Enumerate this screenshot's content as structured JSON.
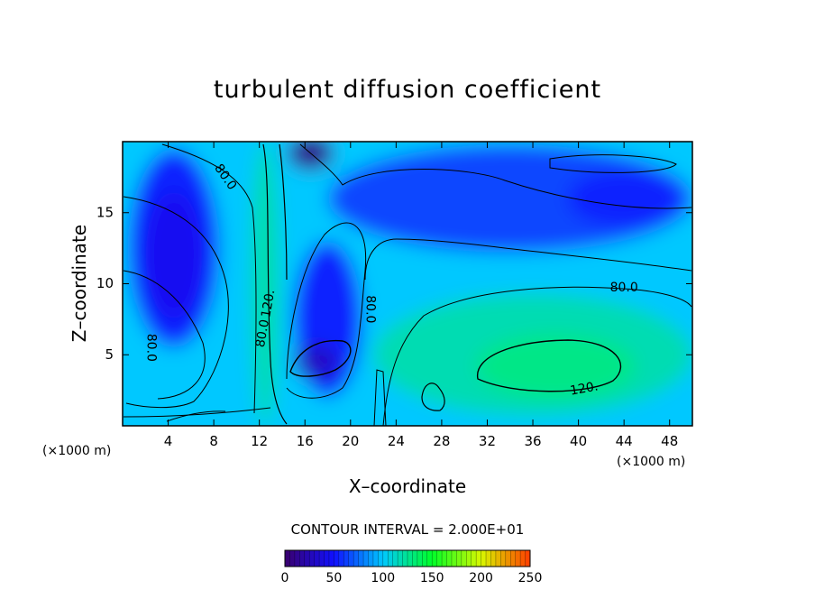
{
  "chart_data": {
    "type": "heatmap",
    "title": "turbulent diffusion coefficient",
    "xlabel": "X–coordinate",
    "ylabel": "Z–coordinate",
    "x_unit_label": "(×1000 m)",
    "x_ticks": [
      4,
      8,
      12,
      16,
      20,
      24,
      28,
      32,
      36,
      40,
      44,
      48
    ],
    "y_ticks": [
      5,
      10,
      15
    ],
    "xlim": [
      0,
      50
    ],
    "ylim": [
      0,
      20
    ],
    "contour_interval_text": "CONTOUR INTERVAL = 2.000E+01",
    "contour_labels": [
      {
        "text": "80.0",
        "x": 9.0,
        "y": 17.5,
        "angle": 55
      },
      {
        "text": "120.",
        "x": 12.8,
        "y": 8.6,
        "angle": -80
      },
      {
        "text": "80.0",
        "x": 12.3,
        "y": 6.5,
        "angle": -80
      },
      {
        "text": "80.0",
        "x": 2.5,
        "y": 5.5,
        "angle": 90
      },
      {
        "text": "80.0",
        "x": 21.7,
        "y": 8.2,
        "angle": 90
      },
      {
        "text": "80.0",
        "x": 44.0,
        "y": 9.7,
        "angle": 0
      },
      {
        "text": "120.",
        "x": 40.5,
        "y": 2.6,
        "angle": -10
      }
    ],
    "colorbar": {
      "min": 0,
      "max": 250,
      "ticks": [
        0,
        50,
        100,
        150,
        200,
        250
      ],
      "colors": [
        "#3a006e",
        "#1010ff",
        "#00c8ff",
        "#00ff28",
        "#d8f800",
        "#ff3c00"
      ]
    },
    "field_regions": [
      {
        "name": "background",
        "value": 100
      },
      {
        "name": "left vortex",
        "x": 4.5,
        "y": 12.5,
        "rx": 4.0,
        "ry": 7.0,
        "value": 55
      },
      {
        "name": "left vortex core",
        "x": 4.5,
        "y": 12.0,
        "rx": 2.5,
        "ry": 4.5,
        "value": 45
      },
      {
        "name": "upper right band",
        "x": 34.0,
        "y": 16.0,
        "rx": 16.0,
        "ry": 3.8,
        "value": 65
      },
      {
        "name": "upper right core",
        "x": 44.0,
        "y": 16.0,
        "rx": 5.0,
        "ry": 2.0,
        "value": 55
      },
      {
        "name": "right eddy",
        "x": 36.0,
        "y": 5.0,
        "rx": 14.0,
        "ry": 4.3,
        "value": 118
      },
      {
        "name": "right eddy core",
        "x": 38.0,
        "y": 4.2,
        "rx": 7.0,
        "ry": 2.3,
        "value": 128
      },
      {
        "name": "central vortex",
        "x": 18.0,
        "y": 7.5,
        "rx": 3.0,
        "ry": 5.5,
        "value": 55
      },
      {
        "name": "central vortex core",
        "x": 17.0,
        "y": 4.5,
        "rx": 2.0,
        "ry": 1.2,
        "value": 30
      },
      {
        "name": "vertical jet",
        "x": 12.5,
        "y": 10.0,
        "rx": 1.2,
        "ry": 10.0,
        "value": 120
      },
      {
        "name": "top plume",
        "x": 16.5,
        "y": 19.2,
        "rx": 2.0,
        "ry": 1.2,
        "value": 10
      }
    ]
  }
}
